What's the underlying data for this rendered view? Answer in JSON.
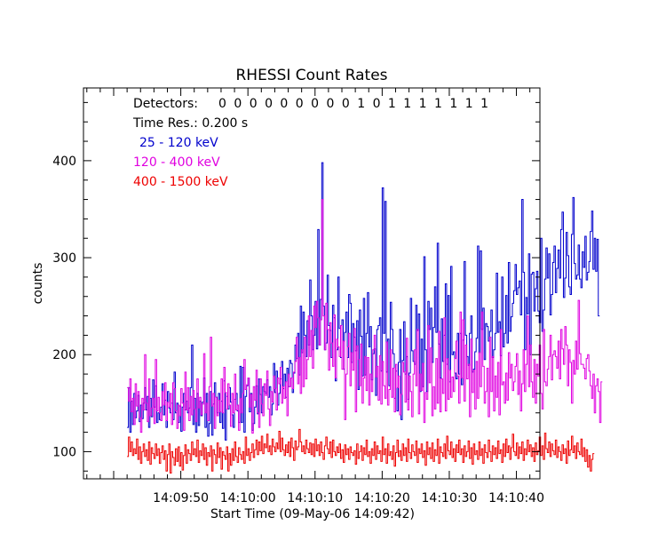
{
  "chart_data": {
    "type": "line",
    "title": "RHESSI Count Rates",
    "xlabel": "Start Time (09-May-06 14:09:42)",
    "ylabel": "counts",
    "xlim": [
      -6.5,
      61.5
    ],
    "ylim": [
      72,
      475
    ],
    "grid": false,
    "x_tick_labels": [
      "14:09:50",
      "14:10:00",
      "14:10:10",
      "14:10:20",
      "14:10:30",
      "14:10:40"
    ],
    "y_tick_labels": [
      "100",
      "200",
      "300",
      "400"
    ],
    "annotations": {
      "detectors_label": "Detectors:",
      "detectors_values": "0 0 0 0 0 0 0 0 0 1 0 1 1 1 1 1 1 1",
      "time_res": "Time Res.: 0.200 s"
    },
    "series": [
      {
        "name": "25 - 120 keV",
        "color": "#0000cc",
        "x_start": 0,
        "x_step": 0.2,
        "values": [
          125,
          166,
          120,
          152,
          128,
          160,
          135,
          142,
          158,
          131,
          148,
          134,
          150,
          166,
          143,
          157,
          125,
          155,
          136,
          174,
          146,
          168,
          130,
          140,
          133,
          146,
          170,
          138,
          153,
          125,
          162,
          145,
          140,
          150,
          133,
          182,
          140,
          150,
          130,
          147,
          121,
          146,
          160,
          143,
          152,
          140,
          145,
          166,
          210,
          128,
          155,
          120,
          160,
          127,
          152,
          137,
          151,
          176,
          125,
          160,
          116,
          129,
          162,
          117,
          149,
          171,
          156,
          140,
          160,
          130,
          152,
          124,
          173,
          112,
          157,
          144,
          166,
          151,
          138,
          125,
          154,
          160,
          142,
          130,
          188,
          130,
          187,
          120,
          157,
          168,
          176,
          141,
          160,
          122,
          129,
          146,
          168,
          139,
          175,
          159,
          140,
          167,
          162,
          160,
          174,
          156,
          167,
          138,
          149,
          191,
          161,
          183,
          148,
          160,
          175,
          193,
          165,
          180,
          156,
          186,
          167,
          194,
          191,
          161,
          181,
          210,
          196,
          222,
          179,
          250,
          202,
          244,
          220,
          198,
          235,
          210,
          277,
          240,
          205,
          220,
          255,
          206,
          329,
          210,
          257,
          398,
          250,
          205,
          212,
          282,
          230,
          225,
          197,
          251,
          238,
          173,
          205,
          280,
          227,
          197,
          236,
          185,
          223,
          244,
          197,
          262,
          253,
          192,
          232,
          218,
          204,
          235,
          164,
          246,
          219,
          178,
          258,
          179,
          222,
          264,
          208,
          229,
          174,
          201,
          206,
          158,
          226,
          230,
          238,
          183,
          372,
          222,
          358,
          182,
          216,
          168,
          254,
          226,
          201,
          155,
          183,
          142,
          192,
          226,
          133,
          194,
          234,
          180,
          198,
          154,
          181,
          258,
          204,
          193,
          190,
          251,
          225,
          242,
          162,
          216,
          167,
          301,
          205,
          162,
          255,
          226,
          248,
          192,
          228,
          270,
          223,
          315,
          211,
          176,
          237,
          193,
          220,
          273,
          190,
          261,
          172,
          291,
          200,
          203,
          181,
          175,
          222,
          180,
          222,
          169,
          215,
          296,
          220,
          198,
          189,
          222,
          240,
          182,
          185,
          203,
          217,
          312,
          202,
          307,
          226,
          248,
          195,
          232,
          229,
          214,
          224,
          246,
          197,
          205,
          222,
          284,
          223,
          234,
          199,
          280,
          208,
          222,
          261,
          212,
          295,
          224,
          239,
          253,
          266,
          293,
          262,
          269,
          276,
          241,
          360,
          285,
          205,
          259,
          242,
          304,
          200,
          283,
          285,
          245,
          268,
          286,
          245,
          233,
          320,
          224,
          246,
          278,
          310,
          279,
          304,
          241,
          262,
          295,
          312,
          264,
          289,
          308,
          279,
          329,
          347,
          259,
          279,
          326,
          302,
          270,
          262,
          324,
          362,
          294,
          278,
          282,
          313,
          278,
          269,
          306,
          290,
          322,
          277,
          285,
          296,
          327,
          348,
          288,
          320,
          286,
          319,
          240
        ]
      },
      {
        "name": "120 - 400 keV",
        "color": "#e000e0",
        "x_start": 0,
        "x_step": 0.2,
        "values": [
          166,
          152,
          175,
          141,
          155,
          128,
          170,
          147,
          162,
          135,
          120,
          155,
          143,
          200,
          150,
          131,
          175,
          137,
          145,
          155,
          129,
          195,
          142,
          156,
          140,
          132,
          162,
          148,
          171,
          132,
          151,
          146,
          160,
          128,
          171,
          165,
          142,
          124,
          148,
          137,
          165,
          150,
          122,
          182,
          143,
          166,
          132,
          157,
          138,
          163,
          144,
          131,
          175,
          145,
          156,
          138,
          149,
          201,
          140,
          150,
          132,
          167,
          218,
          147,
          160,
          124,
          156,
          137,
          153,
          141,
          175,
          140,
          187,
          161,
          144,
          170,
          148,
          126,
          160,
          140,
          180,
          143,
          148,
          122,
          155,
          140,
          160,
          195,
          164,
          169,
          176,
          146,
          159,
          119,
          167,
          153,
          184,
          140,
          125,
          175,
          149,
          137,
          170,
          158,
          183,
          144,
          127,
          162,
          151,
          178,
          165,
          143,
          176,
          170,
          187,
          150,
          167,
          155,
          172,
          137,
          180,
          167,
          176,
          165,
          182,
          193,
          218,
          170,
          197,
          160,
          205,
          167,
          218,
          175,
          195,
          240,
          198,
          225,
          186,
          250,
          228,
          255,
          238,
          210,
          236,
          360,
          240,
          205,
          253,
          226,
          184,
          233,
          212,
          188,
          241,
          176,
          216,
          208,
          198,
          230,
          185,
          214,
          133,
          180,
          208,
          222,
          168,
          202,
          184,
          227,
          141,
          209,
          195,
          168,
          211,
          150,
          176,
          198,
          163,
          197,
          148,
          180,
          162,
          205,
          220,
          177,
          188,
          153,
          199,
          149,
          193,
          168,
          155,
          213,
          148,
          164,
          205,
          156,
          186,
          141,
          190,
          166,
          178,
          138,
          159,
          192,
          182,
          151,
          217,
          143,
          178,
          162,
          136,
          180,
          205,
          168,
          226,
          139,
          180,
          163,
          191,
          130,
          161,
          154,
          230,
          171,
          207,
          137,
          167,
          144,
          196,
          150,
          224,
          141,
          175,
          160,
          238,
          142,
          196,
          154,
          184,
          156,
          177,
          162,
          196,
          214,
          178,
          150,
          244,
          176,
          236,
          152,
          210,
          175,
          190,
          136,
          216,
          161,
          184,
          144,
          193,
          155,
          202,
          167,
          244,
          188,
          150,
          162,
          186,
          136,
          218,
          162,
          198,
          142,
          178,
          156,
          192,
          138,
          226,
          169,
          172,
          150,
          181,
          153,
          202,
          176,
          190,
          163,
          172,
          188,
          201,
          159,
          183,
          142,
          170,
          205,
          162,
          190,
          240,
          167,
          210,
          172,
          156,
          195,
          150,
          190,
          178,
          210,
          160,
          144,
          226,
          172,
          168,
          185,
          198,
          220,
          174,
          200,
          204,
          198,
          186,
          214,
          175,
          226,
          206,
          190,
          229,
          210,
          168,
          205,
          192,
          150,
          194,
          180,
          214,
          185,
          256,
          201,
          190,
          190,
          186,
          175,
          196,
          200,
          183,
          168,
          155,
          180,
          140,
          168,
          175,
          162,
          130,
          172
        ]
      },
      {
        "name": "400 - 1500 keV",
        "color": "#ee0000",
        "x_start": 0,
        "x_step": 0.2,
        "values": [
          95,
          115,
          100,
          110,
          96,
          103,
          98,
          113,
          92,
          105,
          88,
          100,
          108,
          95,
          102,
          91,
          110,
          87,
          104,
          98,
          93,
          108,
          96,
          103,
          88,
          99,
          106,
          92,
          101,
          80,
          97,
          108,
          78,
          100,
          94,
          86,
          103,
          90,
          105,
          85,
          99,
          81,
          96,
          107,
          88,
          102,
          98,
          91,
          110,
          97,
          103,
          95,
          112,
          89,
          101,
          96,
          108,
          92,
          104,
          86,
          99,
          95,
          106,
          80,
          102,
          97,
          88,
          109,
          94,
          104,
          82,
          100,
          96,
          92,
          105,
          80,
          98,
          86,
          103,
          91,
          110,
          95,
          89,
          104,
          97,
          92,
          100,
          88,
          115,
          96,
          103,
          91,
          99,
          108,
          94,
          102,
          112,
          97,
          110,
          101,
          116,
          98,
          108,
          104,
          118,
          100,
          106,
          97,
          113,
          105,
          100,
          109,
          103,
          121,
          100,
          114,
          102,
          96,
          107,
          99,
          110,
          95,
          114,
          104,
          91,
          111,
          102,
          105,
          123,
          110,
          100,
          106,
          98,
          112,
          103,
          99,
          109,
          97,
          108,
          95,
          113,
          101,
          107,
          96,
          110,
          99,
          92,
          106,
          115,
          103,
          98,
          110,
          94,
          112,
          100,
          96,
          105,
          99,
          108,
          93,
          102,
          89,
          107,
          97,
          103,
          92,
          105,
          99,
          96,
          101,
          87,
          108,
          93,
          100,
          106,
          91,
          104,
          97,
          112,
          95,
          100,
          88,
          103,
          96,
          110,
          92,
          106,
          98,
          101,
          90,
          115,
          97,
          103,
          88,
          108,
          96,
          100,
          92,
          106,
          85,
          99,
          112,
          95,
          101,
          91,
          108,
          96,
          104,
          90,
          113,
          99,
          93,
          107,
          100,
          96,
          111,
          89,
          103,
          98,
          108,
          94,
          101,
          86,
          110,
          97,
          104,
          93,
          109,
          90,
          102,
          96,
          113,
          88,
          105,
          99,
          95,
          108,
          93,
          116,
          101,
          97,
          110,
          94,
          103,
          90,
          107,
          99,
          112,
          97,
          103,
          89,
          106,
          95,
          100,
          111,
          93,
          104,
          87,
          108,
          97,
          101,
          92,
          110,
          96,
          103,
          88,
          107,
          99,
          94,
          112,
          100,
          90,
          106,
          97,
          104,
          93,
          111,
          98,
          102,
          89,
          108,
          95,
          113,
          99,
          106,
          92,
          104,
          118,
          100,
          96,
          109,
          93,
          105,
          98,
          110,
          91,
          103,
          97,
          112,
          100,
          107,
          95,
          104,
          90,
          109,
          97,
          101,
          115,
          96,
          106,
          92,
          119,
          103,
          99,
          110,
          95,
          108,
          101,
          97,
          112,
          94,
          105,
          100,
          91,
          107,
          98,
          103,
          88,
          111,
          96,
          102,
          116,
          99,
          106,
          93,
          109,
          100,
          97,
          113,
          95,
          104,
          90,
          102,
          84,
          96,
          80,
          92,
          98
        ]
      }
    ]
  }
}
